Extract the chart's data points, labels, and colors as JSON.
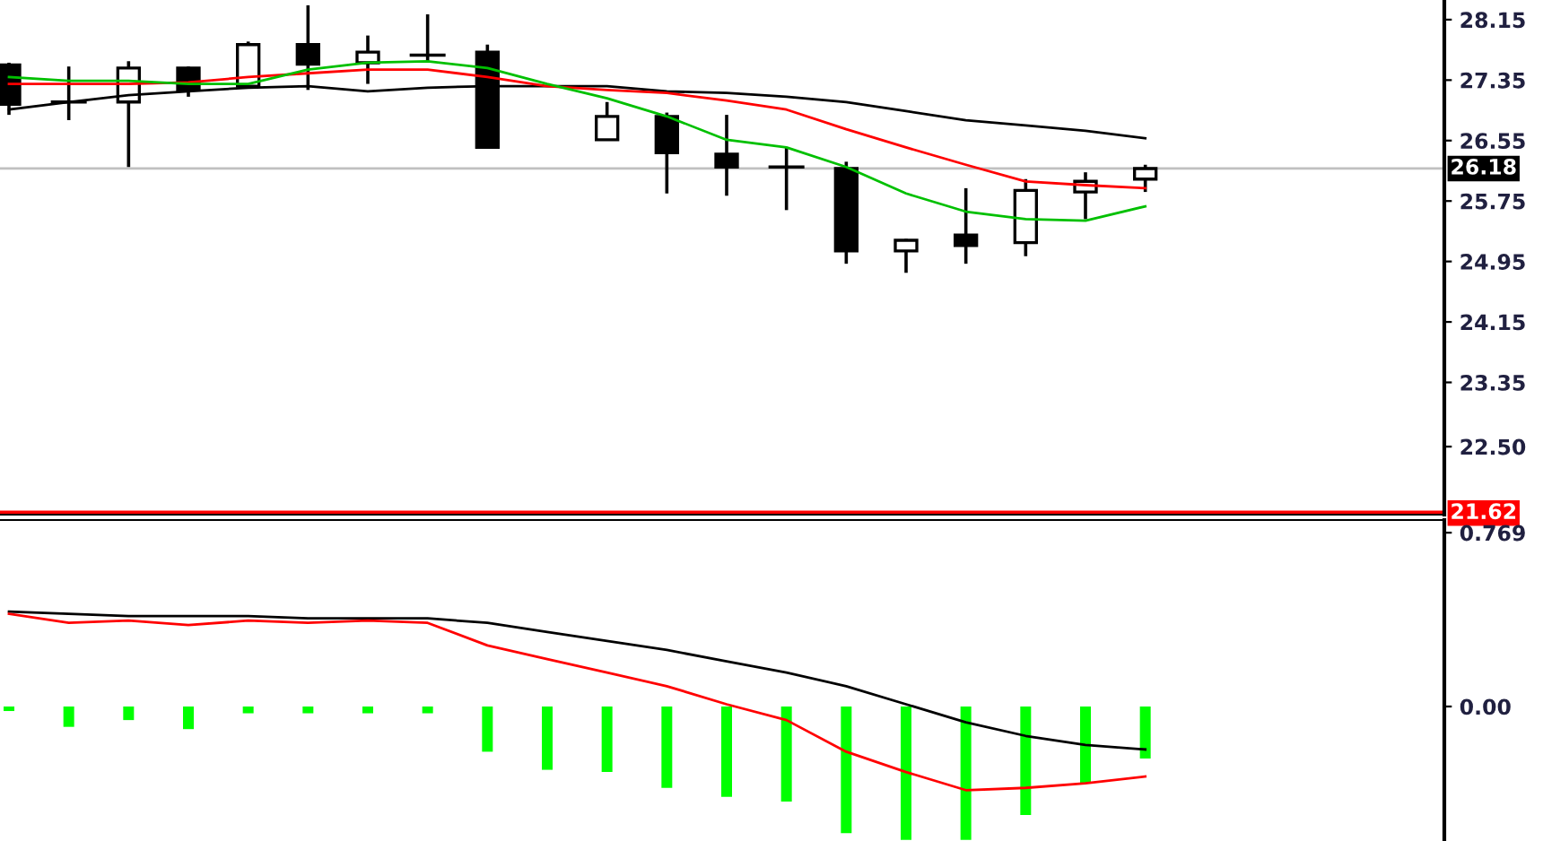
{
  "chart_data": [
    {
      "type": "candlestick",
      "categories": [
        null,
        null,
        null,
        null,
        null,
        null,
        null,
        null,
        null,
        null,
        null,
        null,
        null,
        null,
        null,
        null,
        null,
        null,
        null,
        null
      ],
      "ohlc": [
        [
          27.55,
          27.58,
          26.89,
          27.03
        ],
        [
          27.06,
          27.53,
          26.82,
          27.06
        ],
        [
          27.06,
          27.6,
          26.2,
          27.51
        ],
        [
          27.51,
          27.53,
          27.13,
          27.22
        ],
        [
          27.27,
          27.86,
          27.25,
          27.82
        ],
        [
          27.82,
          28.34,
          27.22,
          27.56
        ],
        [
          27.58,
          27.94,
          27.3,
          27.72
        ],
        [
          27.68,
          28.22,
          27.58,
          27.68
        ],
        [
          27.72,
          27.82,
          26.46,
          26.46
        ],
        null,
        [
          26.56,
          27.06,
          26.56,
          26.87
        ],
        [
          26.87,
          26.92,
          25.85,
          26.39
        ],
        [
          26.37,
          26.89,
          25.82,
          26.2
        ],
        [
          26.2,
          26.46,
          25.63,
          26.2
        ],
        [
          26.18,
          26.27,
          24.92,
          25.09
        ],
        [
          25.09,
          25.25,
          24.8,
          25.23
        ],
        [
          25.3,
          25.92,
          24.92,
          25.16
        ],
        [
          25.2,
          26.04,
          25.02,
          25.89
        ],
        [
          25.87,
          26.13,
          25.51,
          26.01
        ],
        [
          26.04,
          26.23,
          25.87,
          26.18
        ]
      ],
      "series": [
        {
          "type": "line",
          "color": "#000000",
          "values": [
            26.96,
            27.06,
            27.15,
            27.2,
            27.25,
            27.27,
            27.2,
            27.25,
            27.27,
            27.27,
            27.27,
            27.2,
            27.18,
            27.13,
            27.06,
            26.94,
            26.82,
            26.75,
            26.68,
            26.58
          ]
        },
        {
          "type": "line",
          "color": "#ff0000",
          "values": [
            27.3,
            27.3,
            27.3,
            27.32,
            27.39,
            27.44,
            27.49,
            27.49,
            27.39,
            27.27,
            27.22,
            27.18,
            27.08,
            26.96,
            26.7,
            26.46,
            26.23,
            26.01,
            25.96,
            25.92
          ]
        },
        {
          "type": "line",
          "color": "#00c000",
          "values": [
            27.39,
            27.34,
            27.34,
            27.3,
            27.3,
            27.49,
            27.58,
            27.6,
            27.51,
            27.3,
            27.11,
            26.87,
            26.56,
            26.46,
            26.2,
            25.85,
            25.61,
            25.51,
            25.49,
            25.68
          ]
        }
      ],
      "ylim": [
        21.6,
        28.41
      ],
      "yticks": [
        28.15,
        27.35,
        26.55,
        25.75,
        24.95,
        24.15,
        23.35,
        {
          "value": 22.5,
          "label": "22.50"
        }
      ],
      "ref_lines": [
        {
          "axis": "y",
          "value": 26.18,
          "label": "26.18",
          "color": "#c0c0c0"
        },
        {
          "axis": "y",
          "value": 21.62,
          "label": "21.62",
          "color": "#ff0000"
        }
      ],
      "tick_labels": "y",
      "grid": false,
      "legend": false
    },
    {
      "type": "bar",
      "categories": [
        null,
        null,
        null,
        null,
        null,
        null,
        null,
        null,
        null,
        null,
        null,
        null,
        null,
        null,
        null,
        null,
        null,
        null,
        null,
        null
      ],
      "series": [
        {
          "type": "bar",
          "color": "#00ff00",
          "values": [
            -0.02,
            -0.09,
            -0.06,
            -0.1,
            -0.03,
            -0.03,
            -0.03,
            -0.03,
            -0.2,
            -0.28,
            -0.29,
            -0.36,
            -0.4,
            -0.42,
            -0.56,
            -0.59,
            -0.59,
            -0.48,
            -0.34,
            -0.23
          ]
        },
        {
          "type": "line",
          "color": "#000000",
          "values": [
            0.42,
            0.41,
            0.4,
            0.4,
            0.4,
            0.39,
            0.39,
            0.39,
            0.37,
            0.33,
            0.29,
            0.25,
            0.2,
            0.15,
            0.09,
            0.01,
            -0.07,
            -0.13,
            -0.17,
            -0.19
          ]
        },
        {
          "type": "line",
          "color": "#ff0000",
          "values": [
            0.41,
            0.37,
            0.38,
            0.36,
            0.38,
            0.37,
            0.38,
            0.37,
            0.27,
            0.21,
            0.15,
            0.09,
            0.01,
            -0.06,
            -0.2,
            -0.29,
            -0.37,
            -0.36,
            -0.34,
            -0.31
          ]
        }
      ],
      "ylim": [
        -0.595,
        0.825
      ],
      "yticks": [
        0.769,
        {
          "value": 0,
          "label": "0.00"
        }
      ],
      "tick_labels": "y",
      "grid": false,
      "legend": false
    }
  ]
}
